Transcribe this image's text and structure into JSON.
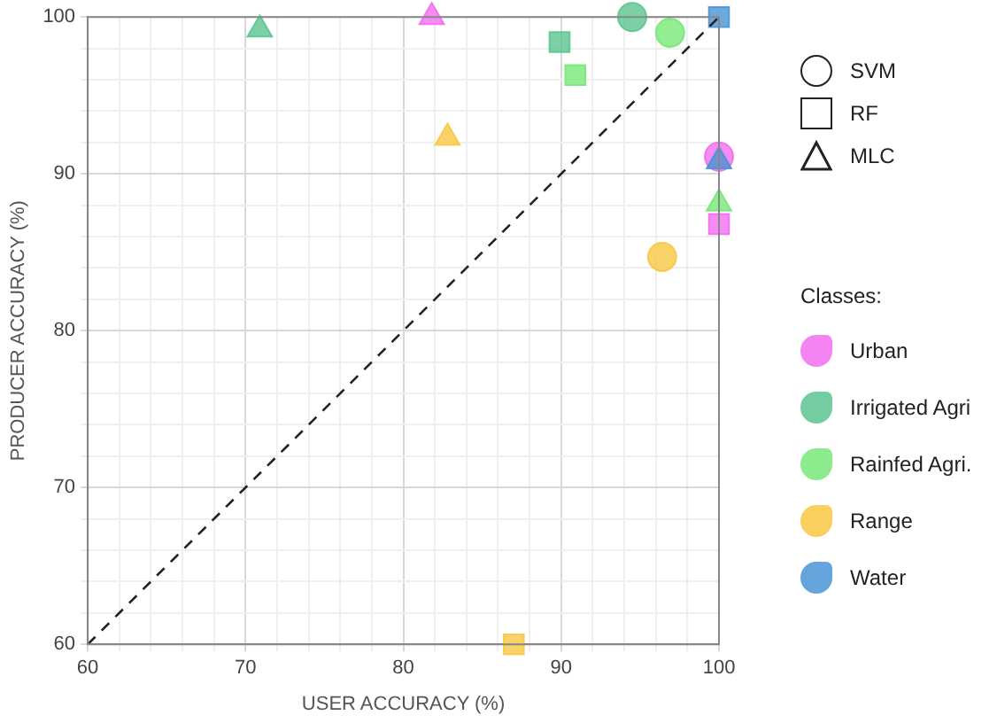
{
  "chart_data": {
    "type": "scatter",
    "xlabel": "USER ACCURACY (%)",
    "ylabel": "PRODUCER ACCURACY (%)",
    "legend_title": "Classes:",
    "legend": "right",
    "grid": true,
    "xlim": [
      60,
      100
    ],
    "ylim": [
      60,
      100
    ],
    "xticks": [
      60,
      {
        "value": 62,
        "label": null
      },
      {
        "value": 64,
        "label": null
      },
      {
        "value": 66,
        "label": null
      },
      {
        "value": 68,
        "label": null
      },
      70,
      {
        "value": 72,
        "label": null
      },
      {
        "value": 74,
        "label": null
      },
      {
        "value": 76,
        "label": null
      },
      {
        "value": 78,
        "label": null
      },
      80,
      {
        "value": 82,
        "label": null
      },
      {
        "value": 84,
        "label": null
      },
      {
        "value": 86,
        "label": null
      },
      {
        "value": 88,
        "label": null
      },
      90,
      {
        "value": 92,
        "label": null
      },
      {
        "value": 94,
        "label": null
      },
      {
        "value": 96,
        "label": null
      },
      {
        "value": 98,
        "label": null
      },
      100
    ],
    "yticks": [
      60,
      {
        "value": 62,
        "label": null
      },
      {
        "value": 64,
        "label": null
      },
      {
        "value": 66,
        "label": null
      },
      {
        "value": 68,
        "label": null
      },
      70,
      {
        "value": 72,
        "label": null
      },
      {
        "value": 74,
        "label": null
      },
      {
        "value": 76,
        "label": null
      },
      {
        "value": 78,
        "label": null
      },
      80,
      {
        "value": 82,
        "label": null
      },
      {
        "value": 84,
        "label": null
      },
      {
        "value": 86,
        "label": null
      },
      {
        "value": 88,
        "label": null
      },
      90,
      {
        "value": 92,
        "label": null
      },
      {
        "value": 94,
        "label": null
      },
      {
        "value": 96,
        "label": null
      },
      {
        "value": 98,
        "label": null
      },
      100
    ],
    "series": [
      {
        "name": "SVM",
        "type": "scatter",
        "marker": "circle",
        "color": "#222222"
      },
      {
        "name": "RF",
        "type": "scatter",
        "marker": "square",
        "color": "#222222"
      },
      {
        "name": "MLC",
        "type": "scatter",
        "marker": "triangle",
        "color": "#222222"
      },
      {
        "name": "Urban",
        "type": "scatter",
        "color": "#f26ef0",
        "marker": [
          "triangle",
          "circle",
          "square"
        ],
        "x": [
          81.8,
          100,
          100
        ],
        "values": [
          100,
          91.1,
          86.8
        ]
      },
      {
        "name": "Irrigated Agri",
        "type": "scatter",
        "color": "#5cc490",
        "marker": [
          "triangle",
          "circle",
          "square"
        ],
        "x": [
          70.9,
          94.5,
          89.9
        ],
        "values": [
          99.2,
          100,
          98.4
        ]
      },
      {
        "name": "Rainfed Agri.",
        "type": "scatter",
        "color": "#78e878",
        "marker": [
          "circle",
          "square",
          "triangle"
        ],
        "x": [
          96.9,
          90.9,
          100
        ],
        "values": [
          99.0,
          96.3,
          88.1
        ]
      },
      {
        "name": "Range",
        "type": "scatter",
        "color": "#f8c844",
        "marker": [
          "triangle",
          "circle",
          "square"
        ],
        "x": [
          82.8,
          96.4,
          87.0
        ],
        "values": [
          92.3,
          84.7,
          60
        ]
      },
      {
        "name": "Water",
        "type": "scatter",
        "color": "#4a94d6",
        "marker": [
          "square",
          "triangle"
        ],
        "x": [
          100,
          100
        ],
        "values": [
          100,
          90.8
        ]
      },
      {
        "type": "line",
        "color": "#222222",
        "line_style": "dashed",
        "marker": "none",
        "x": [
          60,
          100
        ],
        "values": [
          60,
          100
        ]
      }
    ]
  }
}
